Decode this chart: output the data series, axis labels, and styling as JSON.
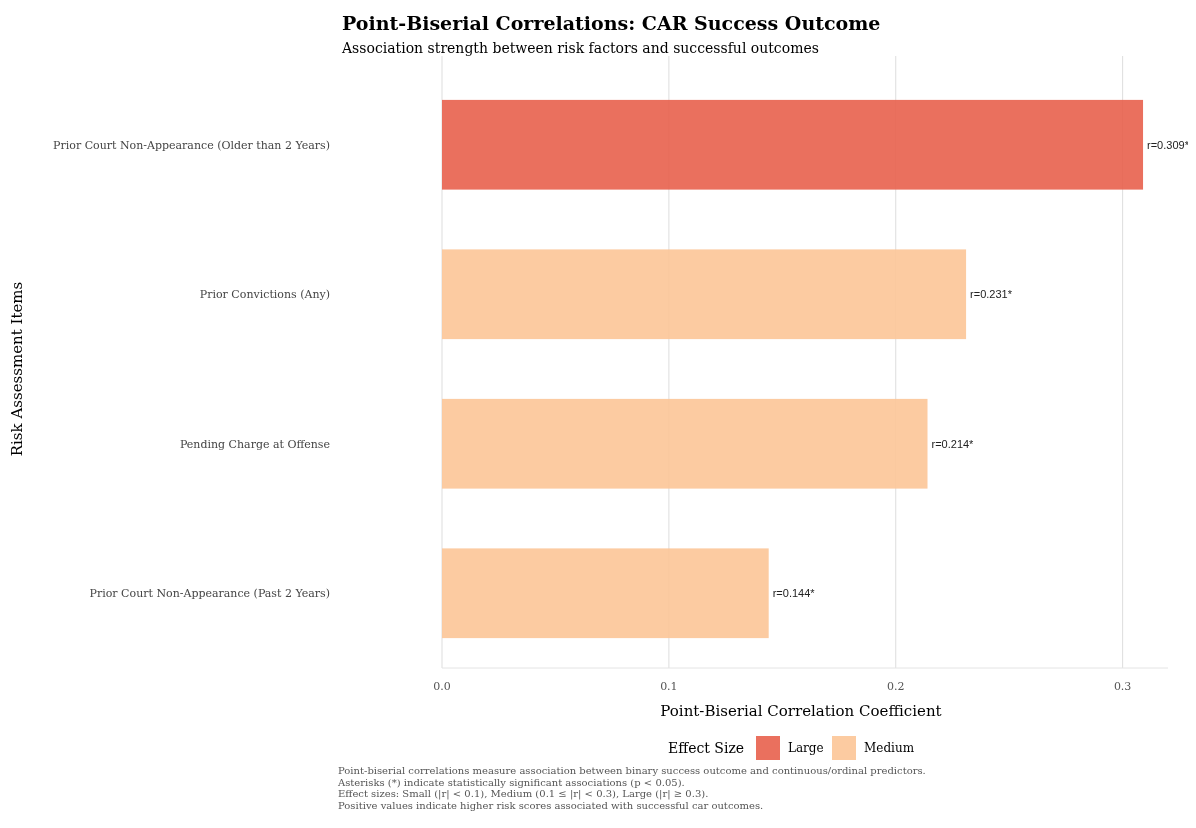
{
  "chart_data": {
    "type": "bar",
    "orientation": "horizontal",
    "title": "Point-Biserial Correlations: CAR Success Outcome",
    "subtitle": "Association strength between risk factors and successful outcomes",
    "xlabel": "Point-Biserial Correlation Coefficient",
    "ylabel": "Risk Assessment Items",
    "categories": [
      "Prior Court Non-Appearance (Older than 2 Years)",
      "Prior Convictions (Any)",
      "Pending Charge at Offense",
      "Prior Court Non-Appearance (Past 2 Years)"
    ],
    "series": [
      {
        "name": "Large",
        "color": "#e8604c",
        "values": [
          0.309,
          null,
          null,
          null
        ],
        "value_labels": [
          "r=0.309*",
          null,
          null,
          null
        ]
      },
      {
        "name": "Medium",
        "color": "#fcc597",
        "values": [
          null,
          0.231,
          0.214,
          0.144
        ],
        "value_labels": [
          null,
          "r=0.231*",
          "r=0.214*",
          "r=0.144*"
        ]
      }
    ],
    "xlim": [
      0,
      0.32
    ],
    "xticks": [
      {
        "value": 0,
        "label": "0.0"
      },
      0.1,
      0.2,
      0.3
    ],
    "grid": "x",
    "legend": "bottom",
    "legend_title": "Effect Size",
    "annotations": [
      "Point-biserial correlations measure association between binary success outcome and continuous/ordinal predictors.",
      "Asterisks (*) indicate statistically significant associations (p < 0.05).",
      "Effect sizes: Small (|r| < 0.1), Medium (0.1 ≤ |r| < 0.3), Large (|r| ≥ 0.3).",
      "Positive values indicate higher risk scores associated with successful car outcomes."
    ]
  }
}
